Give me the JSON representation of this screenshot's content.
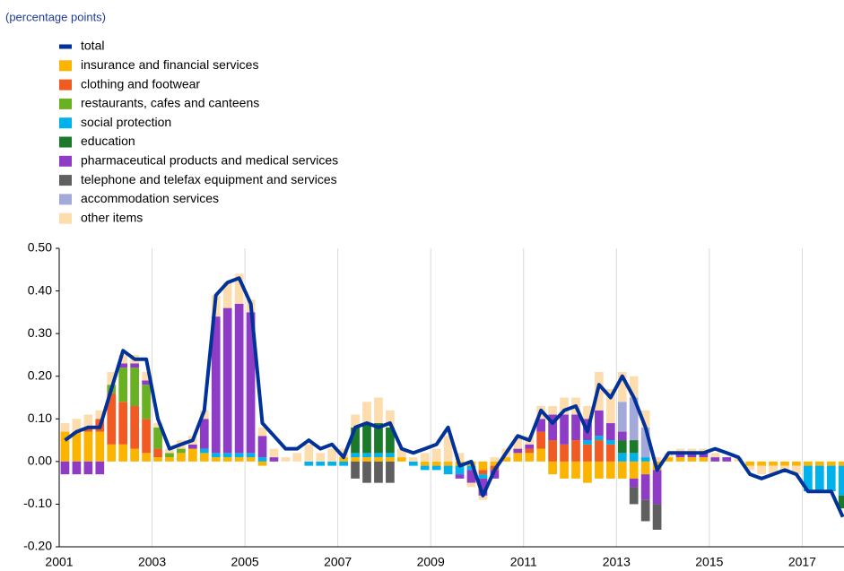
{
  "chart_data": {
    "type": "stacked-bar-line",
    "subtitle": "(percentage points)",
    "x": [
      2001,
      2001.25,
      2001.5,
      2001.75,
      2002,
      2002.25,
      2002.5,
      2002.75,
      2003,
      2003.25,
      2003.5,
      2003.75,
      2004,
      2004.25,
      2004.5,
      2004.75,
      2005,
      2005.25,
      2005.5,
      2005.75,
      2006,
      2006.25,
      2006.5,
      2006.75,
      2007,
      2007.25,
      2007.5,
      2007.75,
      2008,
      2008.25,
      2008.5,
      2008.75,
      2009,
      2009.25,
      2009.5,
      2009.75,
      2010,
      2010.25,
      2010.5,
      2010.75,
      2011,
      2011.25,
      2011.5,
      2011.75,
      2012,
      2012.25,
      2012.5,
      2012.75,
      2013,
      2013.25,
      2013.5,
      2013.75,
      2014,
      2014.25,
      2014.5,
      2014.75,
      2015,
      2015.25,
      2015.5,
      2015.75,
      2016,
      2016.25,
      2016.5,
      2016.75,
      2017,
      2017.25,
      2017.5,
      2017.75
    ],
    "xlim": [
      2001,
      2017.9
    ],
    "xticks": [
      2001,
      2003,
      2005,
      2007,
      2009,
      2011,
      2013,
      2015,
      2017
    ],
    "ylim": [
      -0.2,
      0.5
    ],
    "yticks": [
      {
        "value": -0.2,
        "label": "-0.20"
      },
      {
        "value": -0.1,
        "label": "-0.10"
      },
      {
        "value": 0,
        "label": "0.00"
      },
      {
        "value": 0.1,
        "label": "0.10"
      },
      {
        "value": 0.2,
        "label": "0.20"
      },
      {
        "value": 0.3,
        "label": "0.30"
      },
      {
        "value": 0.4,
        "label": "0.40"
      },
      {
        "value": 0.5,
        "label": "0.50"
      }
    ],
    "grid": "x",
    "line": {
      "name": "total",
      "color": "#003299",
      "values": [
        0.05,
        0.07,
        0.08,
        0.08,
        0.17,
        0.26,
        0.24,
        0.24,
        0.1,
        0.03,
        0.04,
        0.05,
        0.12,
        0.39,
        0.42,
        0.43,
        0.37,
        0.09,
        0.06,
        0.03,
        0.03,
        0.05,
        0.03,
        0.04,
        0.01,
        0.08,
        0.09,
        0.08,
        0.09,
        0.03,
        0.02,
        0.03,
        0.04,
        0.08,
        -0.01,
        0.0,
        -0.08,
        -0.02,
        0.02,
        0.06,
        0.05,
        0.12,
        0.09,
        0.12,
        0.13,
        0.07,
        0.18,
        0.15,
        0.2,
        0.15,
        0.08,
        -0.02,
        0.02,
        0.02,
        0.02,
        0.02,
        0.03,
        0.02,
        0.01,
        -0.03,
        -0.04,
        -0.03,
        -0.02,
        -0.03,
        -0.07,
        -0.07,
        -0.07,
        -0.13
      ]
    },
    "series": [
      {
        "name": "insurance and financial services",
        "color": "#fbb400",
        "values": [
          0.07,
          0.07,
          0.07,
          0.07,
          0.04,
          0.04,
          0.03,
          0.02,
          0.01,
          0.01,
          0.02,
          0.03,
          0.02,
          0.01,
          0.01,
          0.01,
          0.01,
          -0.01,
          0,
          0,
          0,
          0,
          0,
          0,
          0.01,
          0.01,
          0.01,
          0.01,
          0.01,
          0.01,
          0,
          -0.01,
          -0.01,
          -0.01,
          -0.01,
          -0.01,
          -0.02,
          -0.01,
          0.01,
          0.02,
          0.02,
          0.03,
          -0.03,
          -0.04,
          -0.04,
          -0.05,
          -0.04,
          -0.04,
          -0.04,
          -0.04,
          -0.03,
          -0.02,
          0.01,
          0.01,
          0.01,
          0.01,
          0,
          0,
          0,
          -0.01,
          -0.01,
          -0.01,
          -0.01,
          -0.01,
          -0.01,
          -0.01,
          -0.01,
          -0.01
        ]
      },
      {
        "name": "clothing and footwear",
        "color": "#f15a22",
        "values": [
          0,
          0,
          0.01,
          0.03,
          0.12,
          0.1,
          0.1,
          0.08,
          0.02,
          0,
          0,
          0,
          0,
          0,
          0,
          0,
          0,
          0,
          0,
          0,
          0,
          0,
          0,
          0,
          0,
          0,
          0,
          0,
          0,
          0,
          0,
          0,
          0,
          0,
          0,
          0,
          -0.01,
          -0.01,
          0,
          0,
          0.01,
          0.04,
          0.05,
          0.04,
          0.05,
          0.04,
          0.05,
          0.04,
          0,
          0,
          0,
          0,
          0,
          0,
          0,
          0,
          0,
          0,
          0,
          0,
          0,
          0,
          0,
          0,
          0,
          0,
          0,
          0
        ]
      },
      {
        "name": "restaurants, cafes and canteens",
        "color": "#6ab023",
        "values": [
          0,
          0,
          0,
          0,
          0.02,
          0.08,
          0.09,
          0.08,
          0.05,
          0.01,
          0.01,
          0,
          0,
          0,
          0,
          0,
          0,
          0,
          0,
          0,
          0,
          0,
          0,
          0,
          0,
          0,
          0,
          0,
          0,
          0,
          0,
          0,
          0,
          0,
          0,
          0,
          0,
          0,
          0,
          0,
          0,
          0,
          0,
          0,
          0,
          0,
          0,
          0,
          0,
          0,
          0,
          0,
          0,
          0,
          0,
          0,
          0,
          0,
          0,
          0,
          0,
          0,
          0,
          0,
          0,
          0,
          0,
          0
        ]
      },
      {
        "name": "social protection",
        "color": "#00b1ea",
        "values": [
          0,
          0,
          0,
          0,
          0,
          0,
          0,
          0,
          0,
          0,
          0,
          0,
          0.01,
          0.01,
          0.01,
          0.01,
          0.01,
          0.01,
          0,
          0,
          0,
          -0.01,
          -0.01,
          -0.01,
          -0.01,
          0.01,
          0.01,
          0.01,
          0.01,
          0,
          -0.01,
          -0.01,
          -0.01,
          -0.02,
          -0.02,
          -0.01,
          -0.01,
          0,
          0,
          0,
          0,
          0,
          0,
          0,
          0,
          0.01,
          0.01,
          0.01,
          0.02,
          0.02,
          0.01,
          0,
          0,
          0,
          0,
          0,
          0,
          0,
          0,
          0,
          0,
          0,
          0,
          0,
          -0.06,
          -0.06,
          -0.06,
          -0.07
        ]
      },
      {
        "name": "education",
        "color": "#1a7a2a",
        "values": [
          0,
          0,
          0,
          0,
          0,
          0,
          0,
          0,
          0,
          0,
          0,
          0,
          0,
          0,
          0,
          0,
          0,
          0,
          0,
          0,
          0,
          0,
          0,
          0,
          0,
          0.06,
          0.07,
          0.07,
          0.06,
          0,
          0,
          0,
          0,
          0,
          0,
          0,
          0,
          0,
          0,
          0,
          0,
          0,
          0,
          0,
          0,
          0,
          0,
          0,
          0.03,
          0.03,
          0,
          0,
          0,
          0,
          0,
          0,
          0,
          0,
          0,
          0,
          0,
          0,
          0,
          0,
          0,
          0,
          0,
          -0.03
        ]
      },
      {
        "name": "pharmaceutical products and medical services",
        "color": "#8e3cc6",
        "values": [
          -0.03,
          -0.03,
          -0.03,
          -0.03,
          0,
          0.01,
          0.01,
          0.01,
          0,
          0,
          0,
          0.01,
          0.07,
          0.32,
          0.34,
          0.35,
          0.33,
          0.05,
          0.01,
          0,
          0,
          0,
          0,
          0,
          0,
          0,
          0,
          0,
          0,
          0,
          0,
          0,
          0,
          0,
          -0.01,
          -0.03,
          -0.04,
          -0.02,
          0,
          0.01,
          0.01,
          0.03,
          0.06,
          0.07,
          0.06,
          0.05,
          0.06,
          0.04,
          0.02,
          -0.02,
          -0.06,
          -0.08,
          0,
          0.01,
          0.01,
          0.01,
          0.01,
          0.01,
          0,
          0,
          0,
          0,
          0,
          0,
          0,
          0,
          0,
          0
        ]
      },
      {
        "name": "telephone and telefax equipment and services",
        "color": "#5f5f5f",
        "values": [
          0,
          0,
          0,
          0,
          0,
          0,
          0,
          0,
          0,
          0,
          0,
          0,
          0,
          0,
          0,
          0,
          0,
          0,
          0,
          0,
          0,
          0,
          0,
          0,
          0,
          -0.04,
          -0.05,
          -0.05,
          -0.05,
          0,
          0,
          0,
          0,
          0,
          0,
          0,
          0,
          0,
          0,
          0,
          0,
          0,
          0,
          0,
          0,
          0,
          0,
          0,
          0,
          -0.04,
          -0.05,
          -0.06,
          0,
          0,
          0,
          0,
          0,
          0,
          0,
          0,
          0,
          0,
          0,
          0,
          0,
          0,
          0,
          0
        ]
      },
      {
        "name": "accommodation services",
        "color": "#a3a9d8",
        "values": [
          0,
          0,
          0,
          0,
          0,
          0,
          0,
          0,
          0,
          0,
          0,
          0,
          0,
          0,
          0,
          0,
          0,
          0,
          0,
          0,
          0,
          0,
          0,
          0,
          0,
          0,
          0,
          0,
          0,
          0,
          0,
          0,
          0,
          0,
          0,
          0,
          0,
          0,
          0,
          0,
          0,
          0,
          0,
          0,
          0,
          0,
          0,
          0,
          0.07,
          0.1,
          0.07,
          0,
          0,
          0,
          0,
          0,
          0,
          0,
          0,
          0,
          0,
          0,
          0,
          0,
          0,
          0,
          0,
          0
        ]
      },
      {
        "name": "other items",
        "color": "#fddcae",
        "values": [
          0.02,
          0.03,
          0.03,
          0.02,
          0.03,
          0.02,
          0.02,
          0.02,
          0.01,
          0.01,
          0.02,
          0.02,
          0.02,
          0.05,
          0.06,
          0.07,
          0.03,
          0.02,
          0.02,
          0.01,
          0.02,
          0.04,
          0.02,
          0.03,
          0.02,
          0.03,
          0.05,
          0.06,
          0.04,
          0.02,
          0.01,
          0.02,
          0.03,
          0.06,
          0.02,
          -0.01,
          -0.01,
          0.01,
          0.02,
          0.03,
          0.02,
          0.03,
          0.02,
          0.04,
          0.04,
          0.03,
          0.09,
          0.08,
          0.07,
          0.05,
          0.04,
          0.01,
          0.01,
          0.01,
          0.01,
          0.01,
          0.01,
          0,
          0.01,
          -0.01,
          -0.02,
          -0.02,
          -0.01,
          -0.02,
          0,
          0,
          0,
          0
        ]
      }
    ]
  }
}
